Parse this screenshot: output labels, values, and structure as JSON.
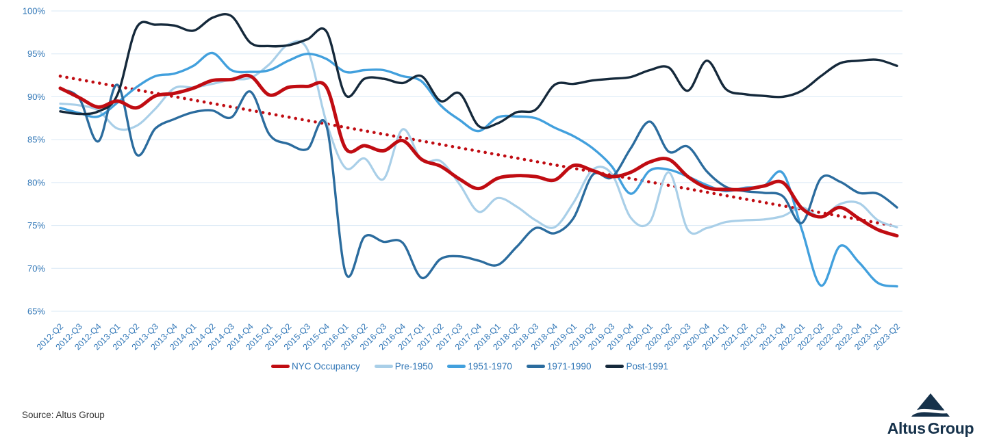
{
  "chart_data": {
    "type": "line",
    "title": "",
    "xlabel": "",
    "ylabel": "",
    "unit": "%",
    "grid": "horizontal",
    "legend_position": "bottom",
    "y_axis": {
      "min": 65,
      "max": 100,
      "step": 5,
      "tick_suffix": "%"
    },
    "y_ticks": [
      "65%",
      "70%",
      "75%",
      "80%",
      "85%",
      "90%",
      "95%",
      "100%"
    ],
    "categories": [
      "2012-Q2",
      "2012-Q3",
      "2012-Q4",
      "2013-Q1",
      "2013-Q2",
      "2013-Q3",
      "2013-Q4",
      "2014-Q1",
      "2014-Q2",
      "2014-Q3",
      "2014-Q4",
      "2015-Q1",
      "2015-Q2",
      "2015-Q3",
      "2015-Q4",
      "2016-Q1",
      "2016-Q2",
      "2016-Q3",
      "2016-Q4",
      "2017-Q1",
      "2017-Q2",
      "2017-Q3",
      "2017-Q4",
      "2018-Q1",
      "2018-Q2",
      "2018-Q3",
      "2018-Q4",
      "2019-Q1",
      "2019-Q2",
      "2019-Q3",
      "2019-Q4",
      "2020-Q1",
      "2020-Q2",
      "2020-Q3",
      "2020-Q4",
      "2021-Q1",
      "2021-Q2",
      "2021-Q3",
      "2021-Q4",
      "2022-Q1",
      "2022-Q2",
      "2022-Q3",
      "2022-Q4",
      "2023-Q1",
      "2023-Q2"
    ],
    "series": [
      {
        "name": "NYC Occupancy",
        "color": "#C00C12",
        "stroke_width": 5,
        "values": [
          91.0,
          89.9,
          88.8,
          89.5,
          88.7,
          90.1,
          90.4,
          91.0,
          91.9,
          92.0,
          92.4,
          90.2,
          91.1,
          91.2,
          91.1,
          84.0,
          84.3,
          83.7,
          84.9,
          82.7,
          81.9,
          80.4,
          79.3,
          80.5,
          80.8,
          80.7,
          80.3,
          82.0,
          81.4,
          80.7,
          81.2,
          82.4,
          82.7,
          80.7,
          79.4,
          79.2,
          79.2,
          79.6,
          80.0,
          77.0,
          76.0,
          77.1,
          75.8,
          74.5,
          73.8
        ]
      },
      {
        "name": "Pre-1950",
        "color": "#A9CFE8",
        "stroke_width": 3.2,
        "values": [
          89.2,
          89.0,
          88.4,
          86.3,
          86.6,
          88.6,
          91.0,
          91.1,
          91.5,
          92.0,
          92.2,
          93.8,
          96.1,
          95.5,
          87.0,
          81.7,
          82.8,
          80.4,
          86.2,
          82.6,
          82.5,
          79.8,
          76.6,
          78.2,
          77.2,
          75.6,
          74.8,
          77.7,
          81.5,
          81.0,
          75.9,
          75.4,
          81.2,
          74.5,
          74.7,
          75.4,
          75.6,
          75.7,
          76.1,
          77.1,
          76.0,
          77.5,
          77.6,
          75.6,
          74.8
        ]
      },
      {
        "name": "1951-1970",
        "color": "#42A0DD",
        "stroke_width": 3.4,
        "values": [
          88.7,
          88.1,
          87.7,
          89.3,
          91.1,
          92.4,
          92.7,
          93.6,
          95.1,
          93.1,
          92.9,
          93.1,
          94.2,
          95.0,
          94.4,
          92.9,
          93.1,
          93.1,
          92.4,
          91.8,
          89.0,
          87.3,
          86.0,
          87.6,
          87.7,
          87.5,
          86.4,
          85.4,
          84.0,
          81.9,
          78.7,
          81.4,
          81.5,
          80.7,
          79.7,
          79.0,
          79.4,
          79.6,
          81.1,
          74.5,
          68.0,
          72.6,
          70.7,
          68.3,
          67.9
        ]
      },
      {
        "name": "1971-1990",
        "color": "#2B6C9E",
        "stroke_width": 3.4,
        "values": [
          90.9,
          89.8,
          84.8,
          91.4,
          83.3,
          86.3,
          87.4,
          88.2,
          88.4,
          87.6,
          90.6,
          85.6,
          84.5,
          83.9,
          86.6,
          69.5,
          73.7,
          73.1,
          73.0,
          68.9,
          71.1,
          71.4,
          70.9,
          70.4,
          72.5,
          74.7,
          74.1,
          75.9,
          80.9,
          80.6,
          84.0,
          87.1,
          83.6,
          84.2,
          81.3,
          79.5,
          79.0,
          78.8,
          78.4,
          75.3,
          80.5,
          80.1,
          78.8,
          78.7,
          77.1
        ]
      },
      {
        "name": "Post-1991",
        "color": "#15293B",
        "stroke_width": 3.4,
        "values": [
          88.3,
          88.0,
          88.3,
          90.2,
          98.0,
          98.4,
          98.3,
          97.7,
          99.2,
          99.4,
          96.3,
          95.9,
          96.0,
          96.7,
          97.6,
          90.2,
          92.1,
          92.1,
          91.6,
          92.4,
          89.5,
          90.4,
          86.6,
          86.9,
          88.2,
          88.5,
          91.4,
          91.5,
          91.9,
          92.1,
          92.3,
          93.1,
          93.4,
          90.7,
          94.2,
          90.9,
          90.3,
          90.1,
          90.0,
          90.7,
          92.4,
          93.9,
          94.2,
          94.3,
          93.6
        ]
      }
    ],
    "trend_line": {
      "name": "NYC Occupancy trend",
      "style": "dotted",
      "color": "#C00C12",
      "start_value": 92.4,
      "end_value": 74.9
    },
    "colors": {
      "axis_text": "#2E75B6",
      "gridline": "#D9E8F5"
    }
  },
  "footer": {
    "source": "Source: Altus Group",
    "logo_text_1": "Altus",
    "logo_text_2": "Group"
  }
}
